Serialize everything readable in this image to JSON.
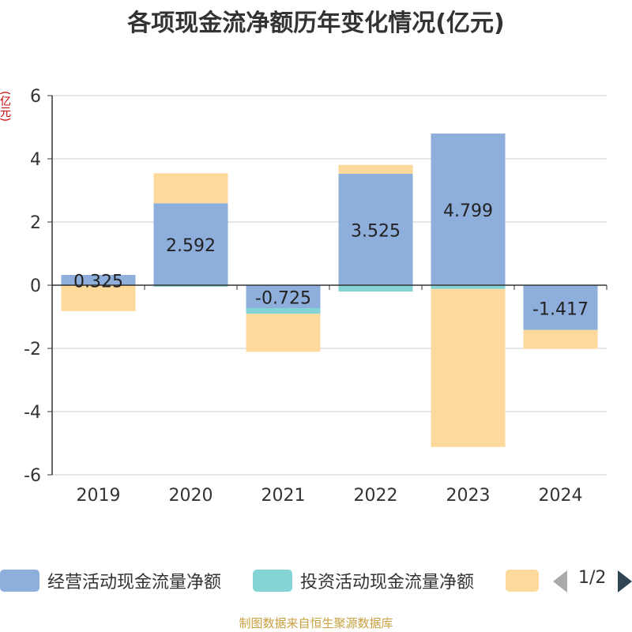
{
  "title": "各项现金流净额历年变化情况(亿元)",
  "unit_label": "(亿元)",
  "legend": {
    "items": [
      {
        "label": "经营活动现金流量净额",
        "color": "#8eaedb"
      },
      {
        "label": "投资活动现金流量净额",
        "color": "#84d4d6"
      },
      {
        "label": "",
        "color": "#fdd99b"
      }
    ],
    "page_text": "1/2"
  },
  "source": "制图数据来自恒生聚源数据库",
  "chart_data": {
    "type": "bar",
    "stacked": true,
    "categories": [
      "2019",
      "2020",
      "2021",
      "2022",
      "2023",
      "2024"
    ],
    "ylim": [
      -6,
      6
    ],
    "yticks": [
      6,
      4,
      2,
      0,
      -2,
      -4,
      -6
    ],
    "grid": true,
    "legend_position": "bottom",
    "series": [
      {
        "name": "经营活动现金流量净额",
        "color": "#8eaedb",
        "values": [
          0.325,
          2.592,
          -0.725,
          3.525,
          4.799,
          -1.417
        ],
        "labels": [
          "0.325",
          "2.592",
          "-0.725",
          "3.525",
          "4.799",
          "-1.417"
        ]
      },
      {
        "name": "投资活动现金流量净额",
        "color": "#84d4d6",
        "values": [
          0,
          -0.05,
          -0.18,
          -0.2,
          -0.12,
          0
        ]
      },
      {
        "color": "#fdd99b",
        "values": [
          -0.82,
          0.95,
          -1.2,
          0.28,
          -5.0,
          -0.6
        ]
      }
    ]
  }
}
